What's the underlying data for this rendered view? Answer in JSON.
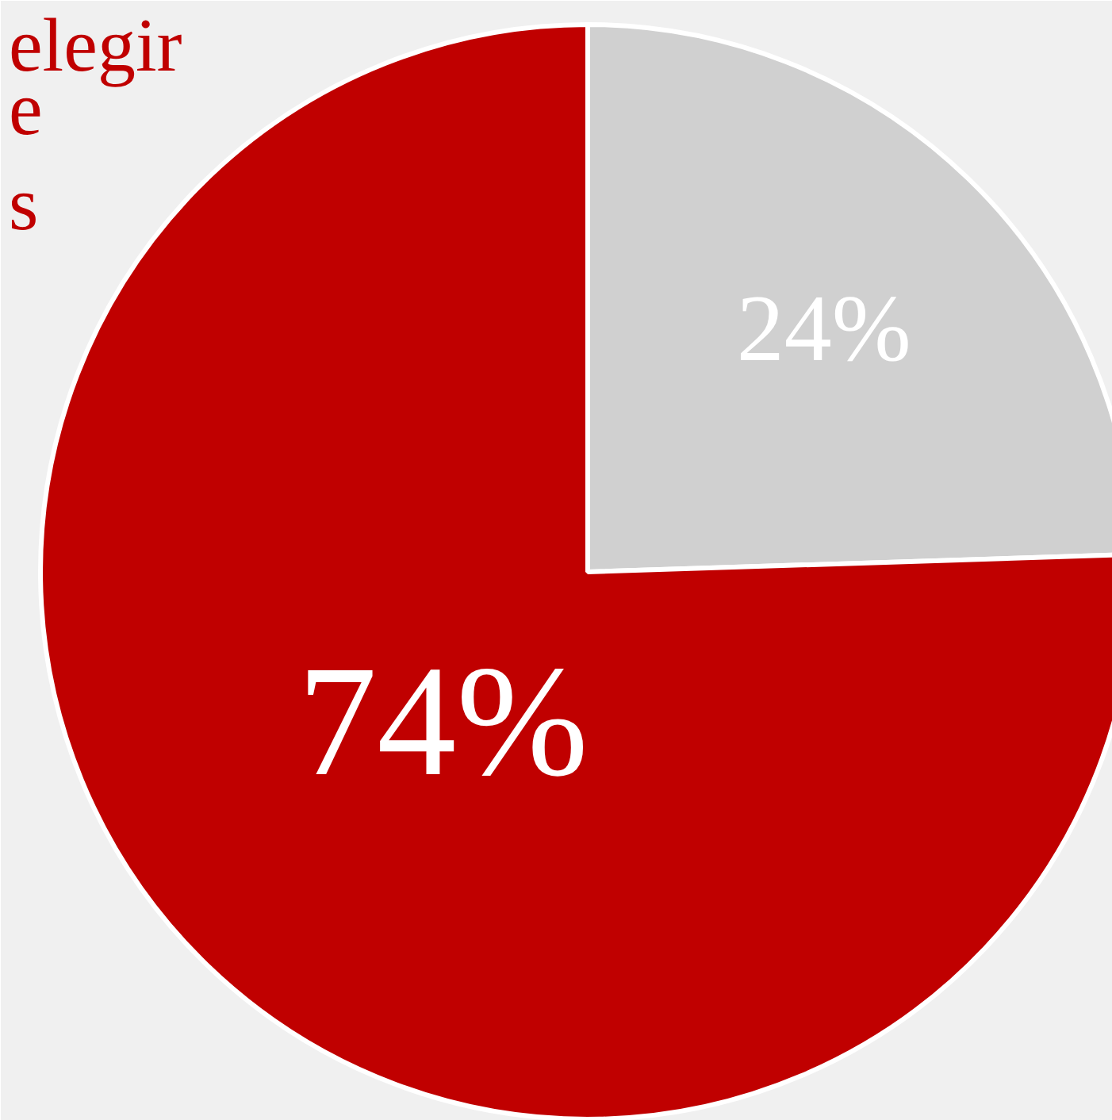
{
  "chart_data": {
    "type": "pie",
    "categories": [
      null,
      null
    ],
    "values": [
      24,
      74
    ],
    "colors": [
      "#d0d0d0",
      "#c00000"
    ],
    "data_labels": true,
    "value_labels": [
      "24%",
      "74%"
    ],
    "annotations": [
      "elegir",
      "e",
      "s"
    ]
  }
}
